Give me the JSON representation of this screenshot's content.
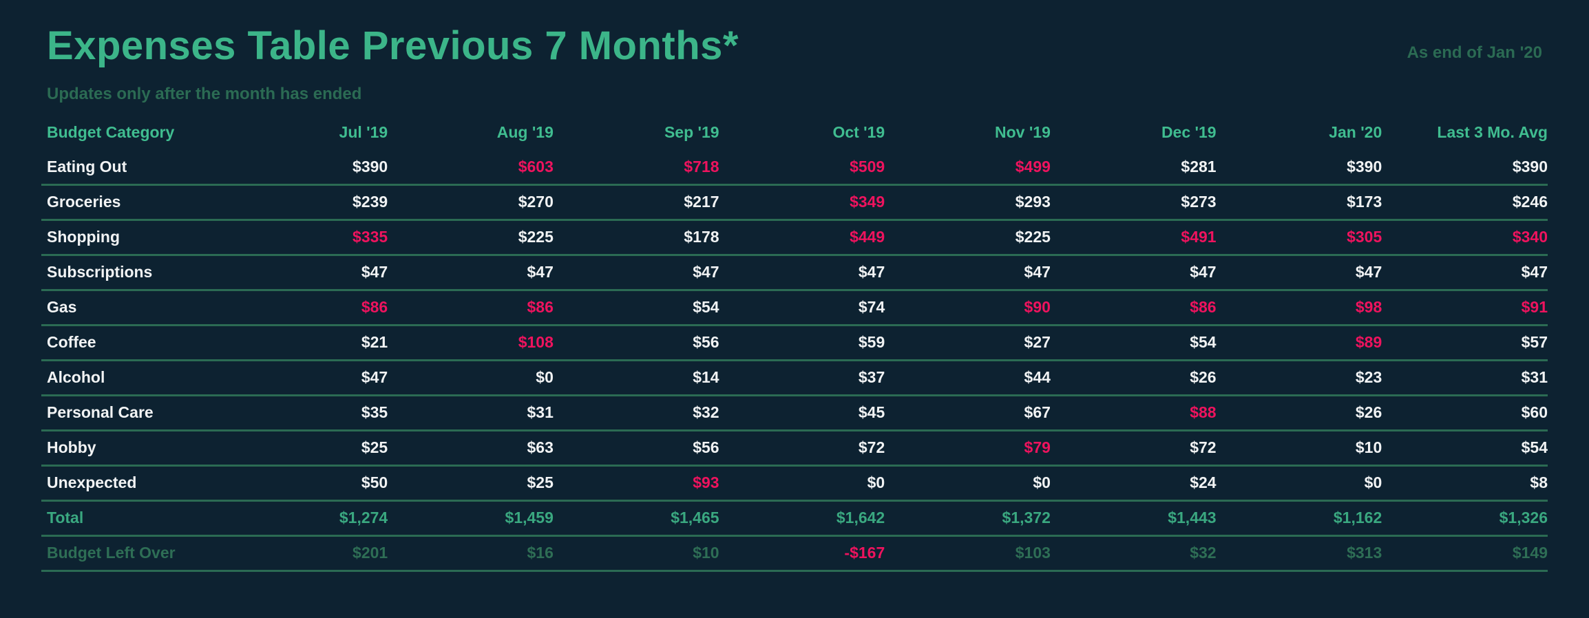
{
  "page": {
    "title": "Expenses Table Previous 7 Months*",
    "subtitle": "Updates only after the month has ended",
    "as_of": "As end of Jan '20"
  },
  "colors": {
    "background": "#0d2231",
    "title_green": "#3cb589",
    "muted_green": "#2b6b53",
    "header_green": "#40bd90",
    "total_green": "#3aa880",
    "text_white": "#f1f3f4",
    "over_budget_red": "#ee135e",
    "divider_green": "#2b6b53"
  },
  "table": {
    "columns": [
      "Budget Category",
      "Jul '19",
      "Aug '19",
      "Sep '19",
      "Oct '19",
      "Nov '19",
      "Dec '19",
      "Jan '20",
      "Last 3 Mo. Avg"
    ],
    "rows": [
      {
        "label": "Eating Out",
        "style": "normal",
        "values": [
          "$390",
          "$603",
          "$718",
          "$509",
          "$499",
          "$281",
          "$390",
          "$390"
        ],
        "over": [
          1,
          2,
          3,
          4
        ]
      },
      {
        "label": "Groceries",
        "style": "normal",
        "values": [
          "$239",
          "$270",
          "$217",
          "$349",
          "$293",
          "$273",
          "$173",
          "$246"
        ],
        "over": [
          3
        ]
      },
      {
        "label": "Shopping",
        "style": "normal",
        "values": [
          "$335",
          "$225",
          "$178",
          "$449",
          "$225",
          "$491",
          "$305",
          "$340"
        ],
        "over": [
          0,
          3,
          5,
          6,
          7
        ]
      },
      {
        "label": "Subscriptions",
        "style": "normal",
        "values": [
          "$47",
          "$47",
          "$47",
          "$47",
          "$47",
          "$47",
          "$47",
          "$47"
        ],
        "over": []
      },
      {
        "label": "Gas",
        "style": "normal",
        "values": [
          "$86",
          "$86",
          "$54",
          "$74",
          "$90",
          "$86",
          "$98",
          "$91"
        ],
        "over": [
          0,
          1,
          4,
          5,
          6,
          7
        ]
      },
      {
        "label": "Coffee",
        "style": "normal",
        "values": [
          "$21",
          "$108",
          "$56",
          "$59",
          "$27",
          "$54",
          "$89",
          "$57"
        ],
        "over": [
          1,
          6
        ]
      },
      {
        "label": "Alcohol",
        "style": "normal",
        "values": [
          "$47",
          "$0",
          "$14",
          "$37",
          "$44",
          "$26",
          "$23",
          "$31"
        ],
        "over": []
      },
      {
        "label": "Personal Care",
        "style": "normal",
        "values": [
          "$35",
          "$31",
          "$32",
          "$45",
          "$67",
          "$88",
          "$26",
          "$60"
        ],
        "over": [
          5
        ]
      },
      {
        "label": "Hobby",
        "style": "normal",
        "values": [
          "$25",
          "$63",
          "$56",
          "$72",
          "$79",
          "$72",
          "$10",
          "$54"
        ],
        "over": [
          4
        ]
      },
      {
        "label": "Unexpected",
        "style": "normal",
        "values": [
          "$50",
          "$25",
          "$93",
          "$0",
          "$0",
          "$24",
          "$0",
          "$8"
        ],
        "over": [
          2
        ]
      },
      {
        "label": "Total",
        "style": "total",
        "values": [
          "$1,274",
          "$1,459",
          "$1,465",
          "$1,642",
          "$1,372",
          "$1,443",
          "$1,162",
          "$1,326"
        ],
        "over": []
      },
      {
        "label": "Budget Left Over",
        "style": "leftover",
        "values": [
          "$201",
          "$16",
          "$10",
          "-$167",
          "$103",
          "$32",
          "$313",
          "$149"
        ],
        "over": [
          3
        ]
      }
    ]
  }
}
